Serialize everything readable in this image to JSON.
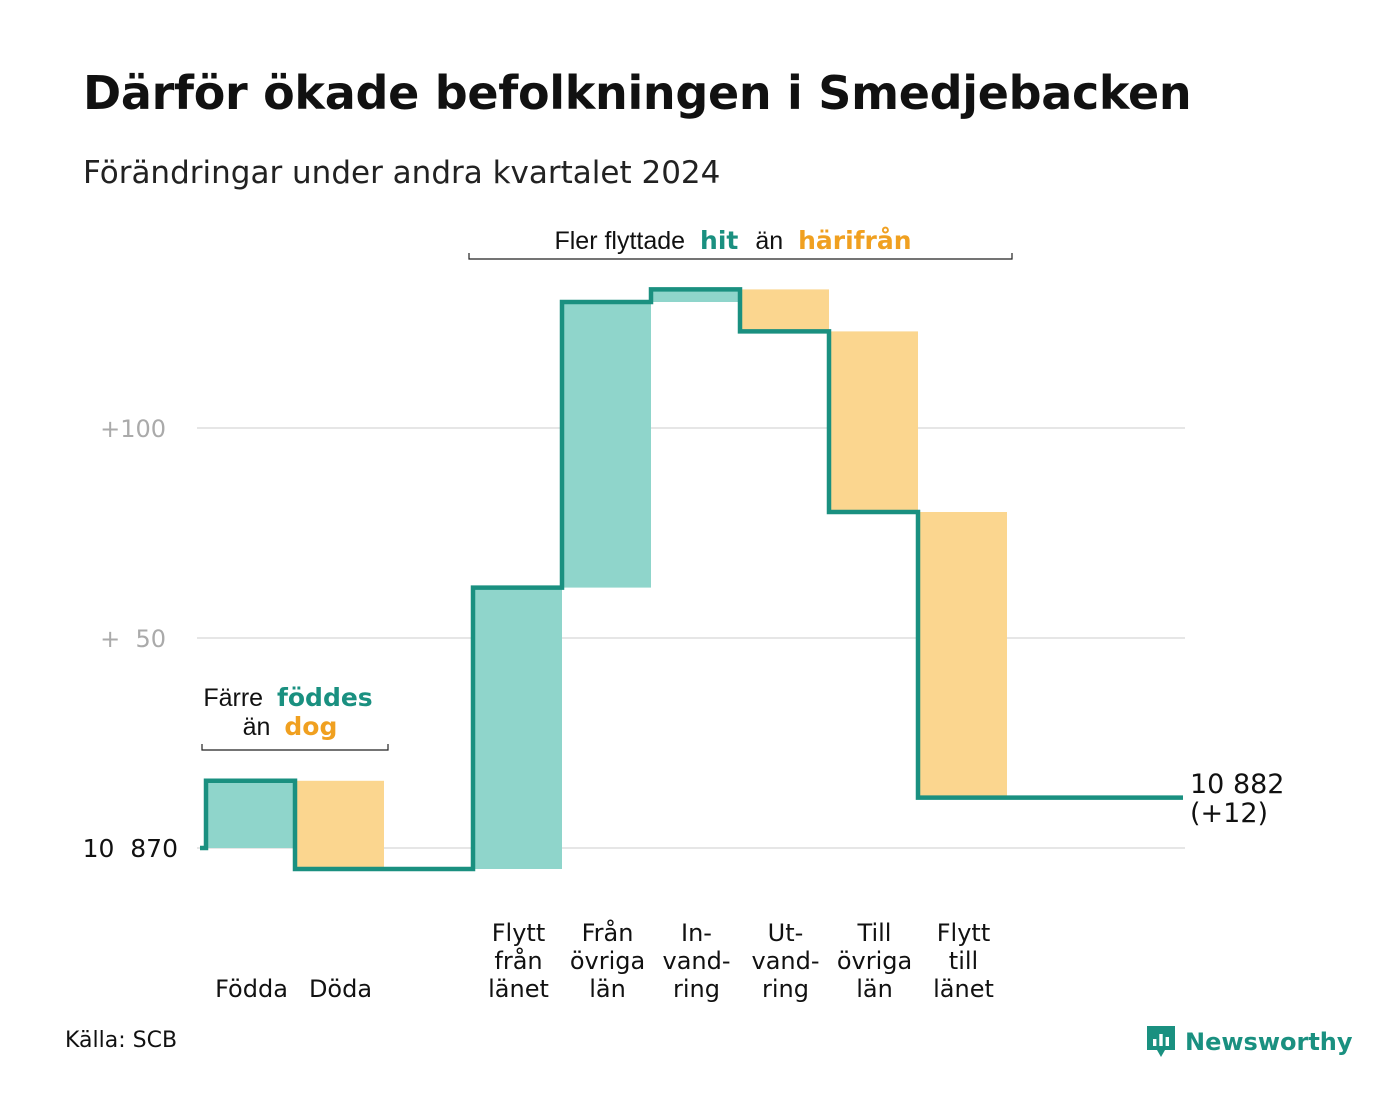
{
  "title": "Därför ökade befolkningen i Smedjebacken",
  "subtitle": "Förändringar under andra kvartalet 2024",
  "source": "Källa: SCB",
  "brand": "Newsworthy",
  "colors": {
    "increase_fill": "#8fd5cb",
    "decrease_fill": "#fbd68f",
    "line": "#1a9080",
    "increase_text": "#1a9080",
    "decrease_text": "#f0a020",
    "grid": "#dddddd",
    "tick_text": "#aaaaaa"
  },
  "annotations": {
    "births": {
      "line1": "Färre",
      "highlight1": "föddes",
      "line2": "än",
      "highlight2": "dog"
    },
    "migration": {
      "prefix": "Fler flyttade",
      "highlight1": "hit",
      "middle": "än",
      "highlight2": "härifrån"
    }
  },
  "end_label": {
    "value": "10 882",
    "change": "(+12)"
  },
  "chart_data": {
    "type": "waterfall",
    "title": "Därför ökade befolkningen i Smedjebacken",
    "subtitle": "Förändringar under andra kvartalet 2024",
    "start_value": 10870,
    "end_value": 10882,
    "ylim": [
      10865,
      10967
    ],
    "grid": true,
    "y_ticks": [
      {
        "value": 10870,
        "label": "10  870"
      },
      {
        "value": 10920,
        "label": "+  50"
      },
      {
        "value": 10970,
        "label": "+100"
      }
    ],
    "steps": [
      {
        "label": [
          "Födda"
        ],
        "value": 16,
        "direction": "increase"
      },
      {
        "label": [
          "Döda"
        ],
        "value": -21,
        "direction": "decrease"
      },
      {
        "label": [],
        "value": 0,
        "direction": "gap"
      },
      {
        "label": [
          "Flytt",
          "från",
          "länet"
        ],
        "value": 67,
        "direction": "increase"
      },
      {
        "label": [
          "Från",
          "övriga",
          "län"
        ],
        "value": 68,
        "direction": "increase"
      },
      {
        "label": [
          "In-",
          "vand-",
          "ring"
        ],
        "value": 3,
        "direction": "increase"
      },
      {
        "label": [
          "Ut-",
          "vand-",
          "ring"
        ],
        "value": -10,
        "direction": "decrease"
      },
      {
        "label": [
          "Till",
          "övriga",
          "län"
        ],
        "value": -43,
        "direction": "decrease"
      },
      {
        "label": [
          "Flytt",
          "till",
          "länet"
        ],
        "value": -68,
        "direction": "decrease"
      }
    ]
  }
}
